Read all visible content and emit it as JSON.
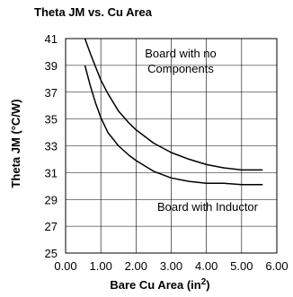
{
  "chart_data": {
    "type": "line",
    "title": "Theta JM vs. Cu Area",
    "xlabel": "Bare Cu Area (in",
    "xlabel_sup": "2",
    "xlabel_end": ")",
    "ylabel": "Theta JM (°C/W)",
    "xlim": [
      0,
      6
    ],
    "ylim": [
      25,
      41
    ],
    "xticks": [
      "0.00",
      "1.00",
      "2.00",
      "3.00",
      "4.00",
      "5.00",
      "6.00"
    ],
    "xtick_values": [
      0,
      1,
      2,
      3,
      4,
      5,
      6
    ],
    "yticks": [
      "25",
      "27",
      "29",
      "31",
      "33",
      "35",
      "37",
      "39",
      "41"
    ],
    "ytick_values": [
      25,
      27,
      29,
      31,
      33,
      35,
      37,
      39,
      41
    ],
    "grid": true,
    "legend": "none",
    "annotations": [
      {
        "text": "Board with no",
        "series_index": 0
      },
      {
        "text": "Components",
        "series_index": 0
      },
      {
        "text": "Board with Inductor",
        "series_index": 1
      }
    ],
    "series": [
      {
        "points": [
          [
            0.55,
            41.0
          ],
          [
            0.7,
            39.9
          ],
          [
            0.85,
            38.9
          ],
          [
            1.0,
            37.9
          ],
          [
            1.2,
            36.9
          ],
          [
            1.5,
            35.6
          ],
          [
            1.8,
            34.7
          ],
          [
            2.0,
            34.2
          ],
          [
            2.5,
            33.2
          ],
          [
            3.0,
            32.5
          ],
          [
            3.5,
            32.0
          ],
          [
            4.0,
            31.6
          ],
          [
            4.5,
            31.35
          ],
          [
            5.0,
            31.2
          ],
          [
            5.3,
            31.2
          ],
          [
            5.6,
            31.2
          ]
        ]
      },
      {
        "points": [
          [
            0.55,
            39.0
          ],
          [
            0.7,
            37.5
          ],
          [
            0.85,
            36.2
          ],
          [
            1.0,
            35.1
          ],
          [
            1.2,
            34.0
          ],
          [
            1.5,
            33.0
          ],
          [
            1.8,
            32.3
          ],
          [
            2.0,
            31.9
          ],
          [
            2.5,
            31.1
          ],
          [
            3.0,
            30.6
          ],
          [
            3.5,
            30.35
          ],
          [
            4.0,
            30.2
          ],
          [
            4.5,
            30.2
          ],
          [
            5.0,
            30.1
          ],
          [
            5.3,
            30.1
          ],
          [
            5.6,
            30.1
          ]
        ]
      }
    ]
  }
}
